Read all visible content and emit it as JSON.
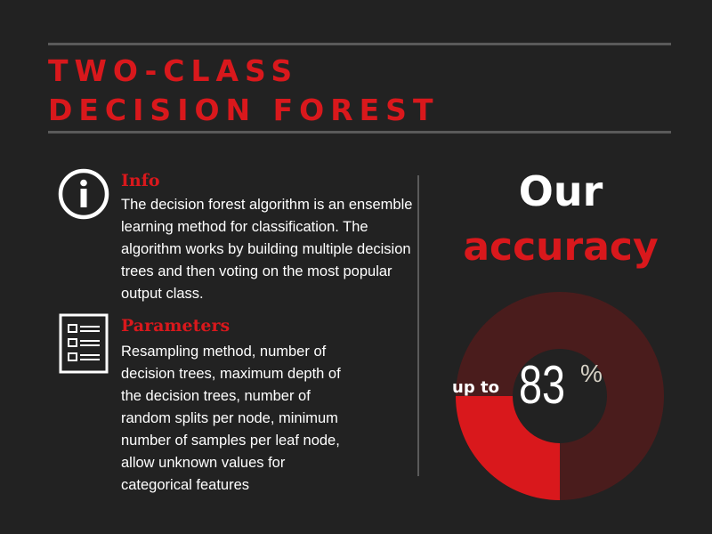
{
  "title": {
    "line1": "TWO-CLASS",
    "line2": "DECISION FOREST"
  },
  "info": {
    "heading": "Info",
    "text": "The decision forest algorithm is an ensemble learning method for classification. The algorithm works by building multiple decision trees and then voting on the most popular output class.",
    "icon": "info-icon"
  },
  "parameters": {
    "heading": "Parameters",
    "text": "Resampling method, number of decision trees,  maximum depth of the decision trees, number of random splits per node, minimum number of samples per leaf node, allow unknown values for categorical features",
    "icon": "document-list-icon"
  },
  "accuracy": {
    "line1": "Our",
    "line2": "accuracy",
    "prefix": "up to",
    "value": "83",
    "unit": "%"
  },
  "colors": {
    "background": "#222222",
    "accent_red": "#d9181c",
    "donut_dark": "#4a1c1c",
    "text": "#ffffff"
  }
}
